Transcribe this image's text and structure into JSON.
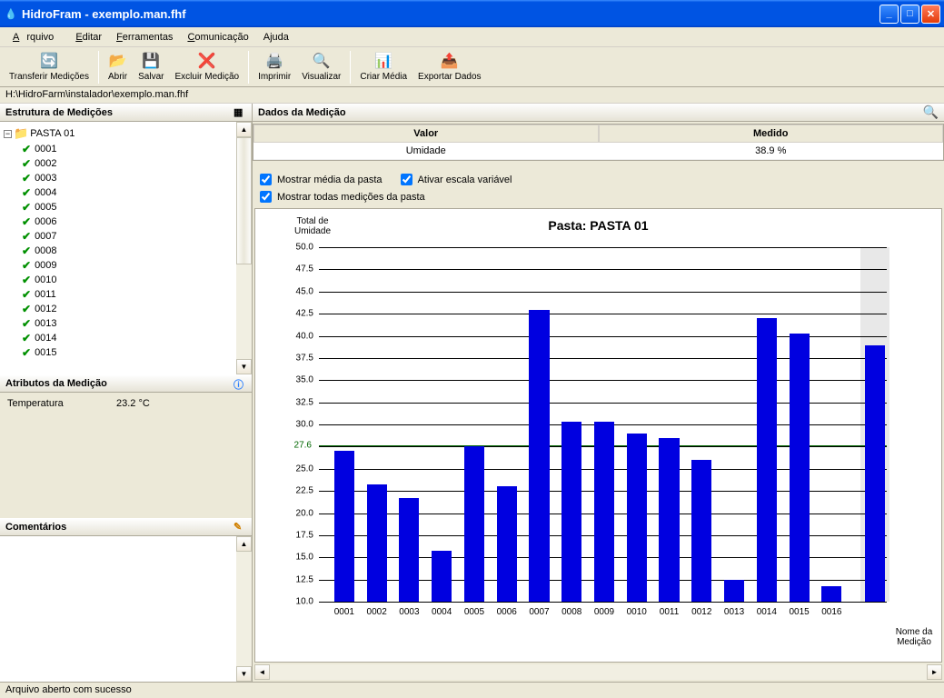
{
  "window": {
    "title": "HidroFram  - exemplo.man.fhf"
  },
  "menubar": {
    "arquivo": "Arquivo",
    "editar": "Editar",
    "ferramentas": "Ferramentas",
    "comunicacao": "Comunicação",
    "ajuda": "Ajuda"
  },
  "toolbar": {
    "transferir": "Transferir Medições",
    "abrir": "Abrir",
    "salvar": "Salvar",
    "excluir": "Excluir Medição",
    "imprimir": "Imprimir",
    "visualizar": "Visualizar",
    "criar_media": "Criar Média",
    "exportar": "Exportar Dados"
  },
  "path": "H:\\HidroFarm\\instalador\\exemplo.man.fhf",
  "panels": {
    "estrutura": "Estrutura de Medições",
    "atributos": "Atributos da Medição",
    "comentarios": "Comentários",
    "dados": "Dados da Medição"
  },
  "tree": {
    "root": "PASTA 01",
    "items": [
      "0001",
      "0002",
      "0003",
      "0004",
      "0005",
      "0006",
      "0007",
      "0008",
      "0009",
      "0010",
      "0011",
      "0012",
      "0013",
      "0014",
      "0015"
    ]
  },
  "attributes": {
    "temperatura_label": "Temperatura",
    "temperatura_value": "23.2 °C"
  },
  "datatable": {
    "col1": "Valor",
    "col2": "Medido",
    "v1": "Umidade",
    "v2": "38.9 %"
  },
  "checkboxes": {
    "media": "Mostrar média da pasta",
    "escala": "Ativar escala variável",
    "todas": "Mostrar todas medições da pasta"
  },
  "chart": {
    "title": "Pasta: PASTA 01",
    "ylabel": "Total de Umidade",
    "xlabel": "Nome da Medição",
    "ylim": [
      10,
      50
    ],
    "ytick_step": 2.5,
    "avg_value": 27.6,
    "bar_color": "#0000e0",
    "grid_color": "#000000",
    "avg_color": "#006600",
    "background_color": "#ffffff",
    "highlight_color": "#e8e8e8",
    "categories": [
      "0001",
      "0002",
      "0003",
      "0004",
      "0005",
      "0006",
      "0007",
      "0008",
      "0009",
      "0010",
      "0011",
      "0012",
      "0013",
      "0014",
      "0015",
      "0016"
    ],
    "values": [
      27.0,
      23.2,
      21.7,
      15.7,
      27.5,
      23.0,
      42.9,
      30.3,
      30.3,
      29.0,
      28.5,
      26.0,
      12.5,
      42.0,
      40.3,
      11.7
    ],
    "extra_bar_value": 38.9
  },
  "status": "Arquivo aberto com sucesso"
}
